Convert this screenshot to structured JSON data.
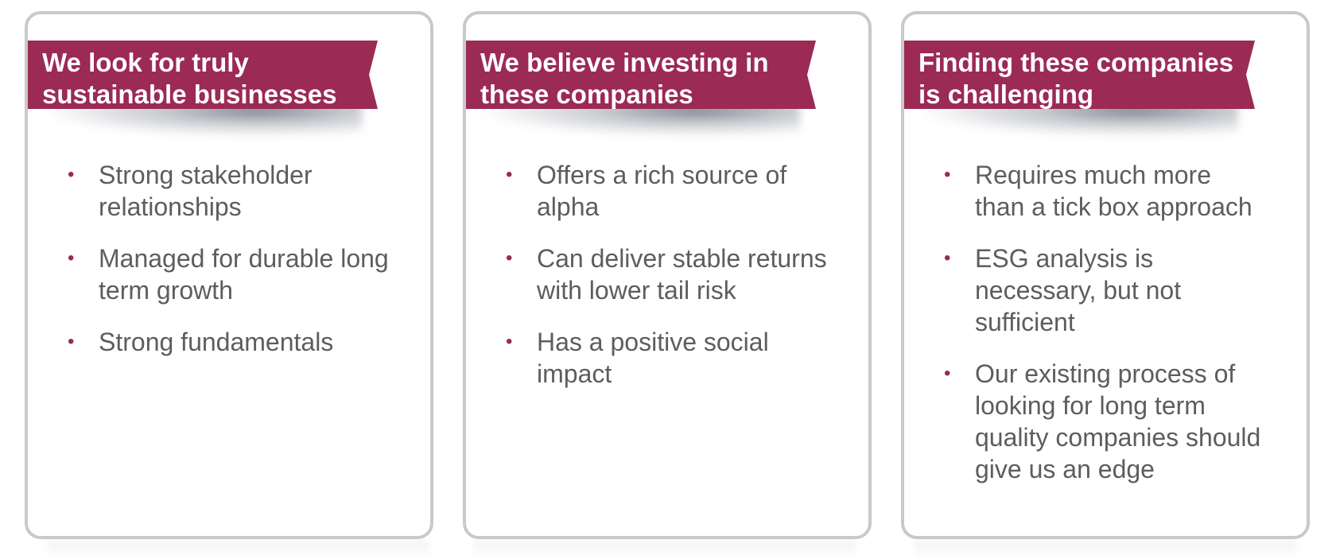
{
  "theme": {
    "ribbon_color": "#9b2a54",
    "bullet_color": "#9b2a54",
    "text_color": "#5d5d5d",
    "card_border_color": "#c9c9c9"
  },
  "cards": [
    {
      "title": "We look for truly\nsustainable businesses",
      "bullets": [
        "Strong stakeholder\nrelationships",
        "Managed for durable long\nterm growth",
        "Strong fundamentals"
      ]
    },
    {
      "title": "We believe investing in\nthese companies",
      "bullets": [
        "Offers a rich source of\nalpha",
        "Can deliver stable returns\nwith lower tail risk",
        "Has a positive social\nimpact"
      ]
    },
    {
      "title": "Finding these companies\nis challenging",
      "bullets": [
        "Requires much more\nthan a tick box approach",
        "ESG analysis is\nnecessary, but not\nsufficient",
        "Our existing process of\nlooking for long term\nquality companies should\ngive us an edge"
      ]
    }
  ],
  "bullet_symbol": "•"
}
